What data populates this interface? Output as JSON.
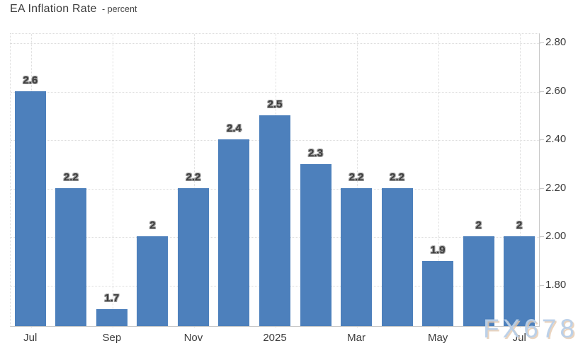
{
  "title": {
    "main": "EA Inflation Rate",
    "sub": "- percent"
  },
  "watermark": "FX678",
  "colors": {
    "bar": "#4d80bc",
    "grid": "#dcdcdc",
    "axis": "#c9c9c9",
    "data_label": "#3d3d3d",
    "data_label_halo": "#9b9b9b",
    "tick_label": "#3c3c3c",
    "watermark_blue": "#b8cfe8",
    "watermark_tan": "#e5c9af"
  },
  "chart_data": {
    "type": "bar",
    "title": "EA Inflation Rate",
    "subtitle": "- percent",
    "values": [
      2.6,
      2.2,
      1.7,
      2,
      2.2,
      2.4,
      2.5,
      2.3,
      2.2,
      2.2,
      1.9,
      2,
      2
    ],
    "bar_labels": [
      "2.6",
      "2.2",
      "1.7",
      "2",
      "2.2",
      "2.4",
      "2.5",
      "2.3",
      "2.2",
      "2.2",
      "1.9",
      "2",
      "2"
    ],
    "x_tick_labels": [
      "Jul",
      "Sep",
      "Nov",
      "2025",
      "Mar",
      "May",
      "Jul"
    ],
    "x_tick_slots": [
      0,
      2,
      4,
      6,
      8,
      10,
      12
    ],
    "y_ticks": [
      "2.80",
      "2.60",
      "2.40",
      "2.20",
      "2.00",
      "1.80"
    ],
    "y_tick_values": [
      2.8,
      2.6,
      2.4,
      2.2,
      2.0,
      1.8
    ],
    "ylim": [
      1.628,
      2.838
    ],
    "xlabel": "",
    "ylabel": "percent",
    "y_axis_side": "right",
    "grid": true,
    "gridline_style": "dotted",
    "legend": "none"
  }
}
